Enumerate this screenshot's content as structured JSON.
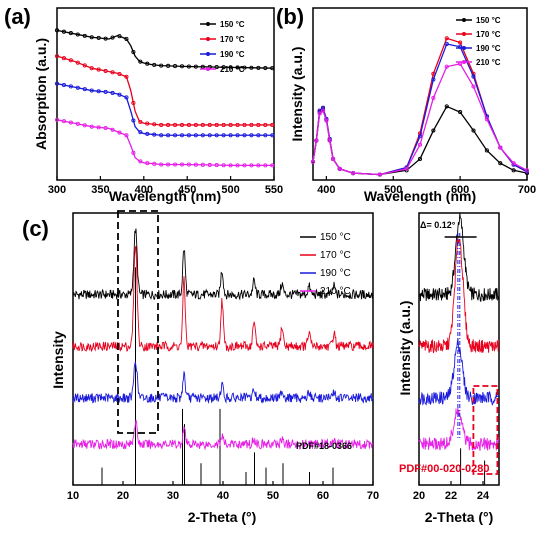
{
  "panels": {
    "a": {
      "letter": "(a)"
    },
    "b": {
      "letter": "(b)"
    },
    "c": {
      "letter": "(c)"
    }
  },
  "legend_temps": [
    "150 °C",
    "170 °C",
    "190 °C",
    "210 °C"
  ],
  "annotations": {
    "delta": "Δ= 0.12°",
    "pdf_main": "PDF#18-0366",
    "pdf_inset": "PDF#00-020-0280"
  },
  "colors": {
    "series": [
      "#000000",
      "#e8001c",
      "#1a1adb",
      "#e61ee6"
    ]
  },
  "chart_data": [
    {
      "type": "line",
      "panel": "(a)",
      "xlabel": "Wavelength (nm)",
      "ylabel": "Absorption (a.u.)",
      "xlim": [
        300,
        550
      ],
      "xticks": [
        300,
        350,
        400,
        450,
        500,
        550
      ],
      "markers": true,
      "legend_position": "top-right",
      "x": [
        300,
        320,
        340,
        360,
        370,
        380,
        385,
        390,
        395,
        400,
        410,
        420,
        450,
        500,
        550
      ],
      "series": [
        {
          "name": "150 °C",
          "values": [
            0.87,
            0.85,
            0.83,
            0.82,
            0.84,
            0.82,
            0.78,
            0.72,
            0.69,
            0.68,
            0.67,
            0.665,
            0.66,
            0.655,
            0.65
          ]
        },
        {
          "name": "170 °C",
          "values": [
            0.72,
            0.69,
            0.65,
            0.63,
            0.62,
            0.6,
            0.52,
            0.4,
            0.34,
            0.33,
            0.325,
            0.32,
            0.32,
            0.32,
            0.32
          ]
        },
        {
          "name": "190 °C",
          "values": [
            0.56,
            0.54,
            0.52,
            0.51,
            0.5,
            0.48,
            0.4,
            0.31,
            0.28,
            0.27,
            0.265,
            0.26,
            0.26,
            0.26,
            0.26
          ]
        },
        {
          "name": "210 °C",
          "values": [
            0.35,
            0.33,
            0.31,
            0.3,
            0.28,
            0.26,
            0.2,
            0.13,
            0.11,
            0.1,
            0.095,
            0.09,
            0.09,
            0.085,
            0.085
          ]
        }
      ]
    },
    {
      "type": "line",
      "panel": "(b)",
      "xlabel": "Wavelength (nm)",
      "ylabel": "Intensity (a.u.)",
      "xlim": [
        380,
        700
      ],
      "xticks": [
        400,
        500,
        600,
        700
      ],
      "markers": true,
      "legend_position": "top-right",
      "x": [
        380,
        385,
        390,
        395,
        400,
        405,
        410,
        420,
        440,
        480,
        520,
        540,
        560,
        580,
        600,
        620,
        640,
        660,
        680,
        700
      ],
      "series": [
        {
          "name": "150 °C",
          "values": [
            0.1,
            0.25,
            0.45,
            0.47,
            0.4,
            0.25,
            0.12,
            0.05,
            0.02,
            0.01,
            0.04,
            0.12,
            0.32,
            0.49,
            0.45,
            0.32,
            0.18,
            0.09,
            0.04,
            0.02
          ]
        },
        {
          "name": "170 °C",
          "values": [
            0.1,
            0.25,
            0.46,
            0.48,
            0.4,
            0.26,
            0.12,
            0.05,
            0.02,
            0.01,
            0.06,
            0.3,
            0.72,
            0.97,
            0.94,
            0.72,
            0.42,
            0.2,
            0.08,
            0.03
          ]
        },
        {
          "name": "190 °C",
          "values": [
            0.1,
            0.25,
            0.46,
            0.48,
            0.4,
            0.26,
            0.12,
            0.05,
            0.02,
            0.01,
            0.06,
            0.28,
            0.68,
            0.93,
            0.91,
            0.7,
            0.42,
            0.2,
            0.08,
            0.03
          ]
        },
        {
          "name": "210 °C",
          "values": [
            0.1,
            0.25,
            0.44,
            0.46,
            0.39,
            0.25,
            0.12,
            0.05,
            0.02,
            0.01,
            0.05,
            0.22,
            0.55,
            0.77,
            0.79,
            0.63,
            0.4,
            0.2,
            0.09,
            0.04
          ]
        }
      ]
    },
    {
      "type": "line",
      "panel": "(c)",
      "xlabel": "2-Theta (°)",
      "ylabel": "Intensity",
      "xlim": [
        10,
        70
      ],
      "xticks": [
        10,
        20,
        30,
        40,
        50,
        60,
        70
      ],
      "legend_position": "top-right",
      "peaks_2theta": [
        22.5,
        32.2,
        39.8,
        46.2,
        51.8,
        57.2,
        62.2
      ],
      "series": [
        {
          "name": "150 °C",
          "baseline": 0.7,
          "peak_heights": [
            0.24,
            0.17,
            0.09,
            0.05,
            0.04,
            0.03,
            0.03
          ]
        },
        {
          "name": "170 °C",
          "baseline": 0.51,
          "peak_heights": [
            0.38,
            0.24,
            0.17,
            0.09,
            0.07,
            0.05,
            0.05
          ]
        },
        {
          "name": "190 °C",
          "baseline": 0.32,
          "peak_heights": [
            0.14,
            0.09,
            0.05,
            0.03,
            0.03,
            0.02,
            0.02
          ]
        },
        {
          "name": "210 °C",
          "baseline": 0.15,
          "peak_heights": [
            0.08,
            0.06,
            0.03,
            0.02,
            0.02,
            0.01,
            0.01
          ]
        }
      ],
      "reference_PDF#18-0366": {
        "x": [
          15.8,
          22.5,
          31.9,
          32.3,
          35.6,
          39.4,
          44.6,
          46.3,
          48.6,
          52.0,
          57.3,
          62.0
        ],
        "intensity": [
          0.08,
          1.0,
          0.35,
          0.28,
          0.1,
          0.35,
          0.06,
          0.15,
          0.08,
          0.1,
          0.06,
          0.08
        ]
      },
      "highlight_box_2theta": [
        19,
        27
      ]
    },
    {
      "type": "line",
      "panel": "(c) inset",
      "xlabel": "2-Theta (°)",
      "ylabel": "Intensity (a.u.)",
      "xlim": [
        20,
        25
      ],
      "xticks": [
        20,
        22,
        24
      ],
      "peak_center_2theta": [
        22.55,
        22.5,
        22.45,
        22.43
      ],
      "shift_delta_deg": 0.12,
      "reference_PDF#00-020-0280": {
        "x": [
          22.6,
          24.1
        ],
        "intensity": [
          0.9,
          0.6
        ]
      }
    }
  ]
}
